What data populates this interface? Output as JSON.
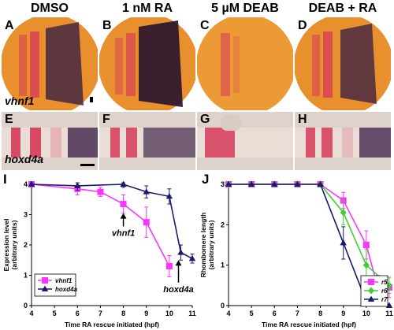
{
  "columns": [
    "DMSO",
    "1 nM RA",
    "5 µM DEAB",
    "DEAB + RA"
  ],
  "row_labels": {
    "top": [
      "A",
      "B",
      "C",
      "D"
    ],
    "bottom": [
      "E",
      "F",
      "G",
      "H"
    ]
  },
  "gene_labels": {
    "top": "vhnf1",
    "bottom": "hoxd4a"
  },
  "colors": {
    "embryo_orange": "#e8902e",
    "stripe_red": "#d63a58",
    "stain_purple": "#3e2242",
    "tissue_bg": "#ded3cc",
    "magenta": "#ff33ff",
    "navy": "#1a1a6e",
    "green": "#44cc33"
  },
  "chart_data": [
    {
      "type": "line",
      "panel": "I",
      "xlabel": "Time RA rescue initiated (hpf)",
      "ylabel": "Expression level (arbitrary units)",
      "xlim": [
        4,
        11
      ],
      "ylim": [
        0,
        4
      ],
      "xticks": [
        "4",
        "5",
        "6",
        "7",
        "8",
        "9",
        "10",
        "11"
      ],
      "yticks": [
        "0",
        "1",
        "2",
        "3",
        "4"
      ],
      "legend_position": "bottom-left",
      "series": [
        {
          "name": "vhnf1",
          "color": "#ff33ff",
          "marker": "square",
          "x": [
            4,
            6,
            7,
            8,
            9,
            10
          ],
          "y": [
            4.0,
            3.85,
            3.75,
            3.35,
            2.75,
            1.3
          ],
          "err": [
            0.05,
            0.2,
            0.15,
            0.3,
            0.5,
            0.35
          ]
        },
        {
          "name": "hoxd4a",
          "color": "#1a1a6e",
          "marker": "triangle",
          "x": [
            4,
            6,
            8,
            9,
            10,
            10.5,
            11
          ],
          "y": [
            4.0,
            3.95,
            4.0,
            3.75,
            3.6,
            1.75,
            1.55
          ],
          "err": [
            0.05,
            0.15,
            0.1,
            0.2,
            0.25,
            0.25,
            0.15
          ]
        }
      ],
      "annotations": [
        {
          "text": "vhnf1",
          "x": 8,
          "y": 2.4,
          "arrow_to": [
            8,
            3.05
          ]
        },
        {
          "text": "hoxd4a",
          "x": 10.4,
          "y": 0.55,
          "arrow_to": [
            10.4,
            1.5
          ]
        }
      ]
    },
    {
      "type": "line",
      "panel": "J",
      "xlabel": "Time RA rescue initiated (hpf)",
      "ylabel": "Rhombomere length (arbitrary units)",
      "xlim": [
        4,
        11
      ],
      "ylim": [
        0,
        3
      ],
      "xticks": [
        "4",
        "5",
        "6",
        "7",
        "8",
        "9",
        "10",
        "11"
      ],
      "yticks": [
        "0",
        "1",
        "2",
        "3"
      ],
      "legend_position": "bottom-right",
      "series": [
        {
          "name": "r5",
          "color": "#ff33ff",
          "marker": "square",
          "x": [
            4,
            5,
            6,
            7,
            8,
            9,
            10,
            10.5,
            11
          ],
          "y": [
            3,
            3,
            3,
            3,
            3,
            2.6,
            1.5,
            0.45,
            0.45
          ],
          "err": [
            0.03,
            0.03,
            0.03,
            0.03,
            0.03,
            0.2,
            0.35,
            0.3,
            0.25
          ]
        },
        {
          "name": "r6",
          "color": "#44cc33",
          "marker": "diamond",
          "x": [
            4,
            5,
            6,
            7,
            8,
            9,
            10,
            11
          ],
          "y": [
            3,
            3,
            3,
            3,
            3,
            2.3,
            1.0,
            0.5
          ],
          "err": [
            0.03,
            0.03,
            0.03,
            0.03,
            0.03,
            0.3,
            0.4,
            0.2
          ]
        },
        {
          "name": "r7",
          "color": "#1a1a6e",
          "marker": "triangle",
          "x": [
            4,
            5,
            6,
            7,
            8,
            9,
            10,
            11
          ],
          "y": [
            3,
            3,
            3,
            3,
            3,
            1.55,
            0.1,
            0.0
          ],
          "err": [
            0.03,
            0.03,
            0.03,
            0.03,
            0.03,
            0.4,
            0.1,
            0.03
          ]
        }
      ]
    }
  ]
}
